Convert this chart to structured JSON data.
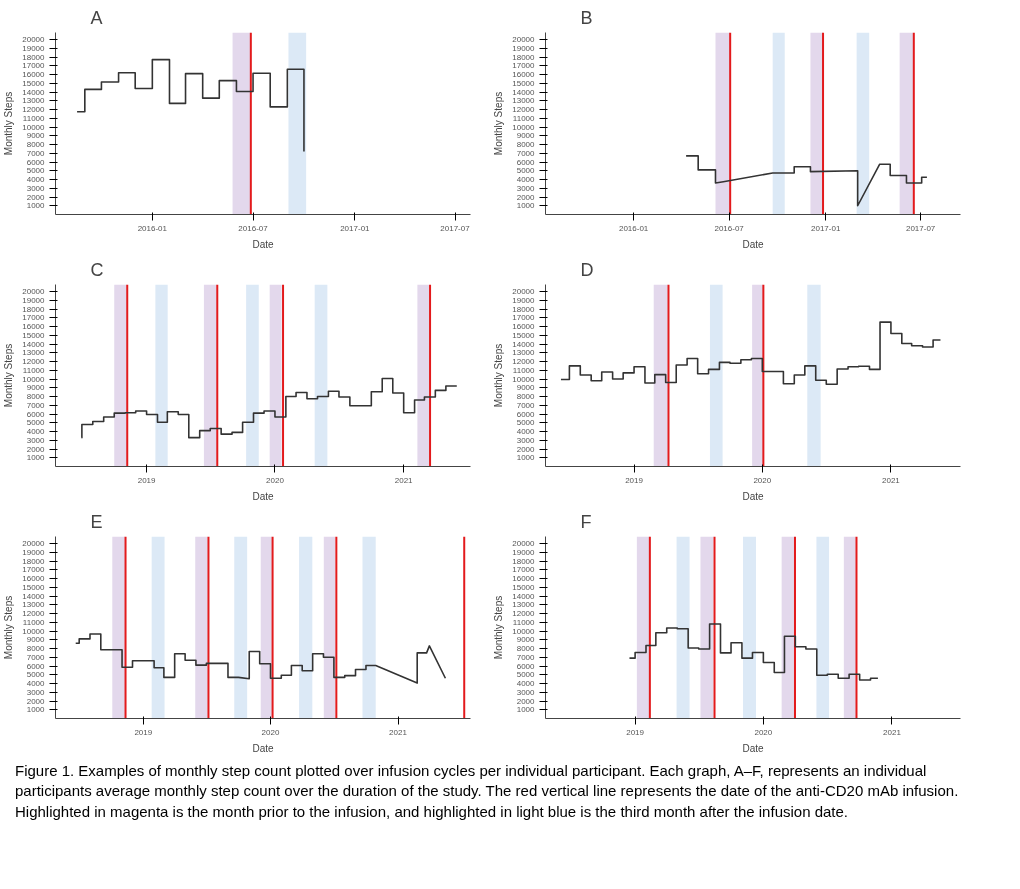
{
  "chart_data": [
    {
      "type": "step",
      "title": "A",
      "xlabel": "Date",
      "ylabel": "Monthly Steps",
      "xlim": [
        "2015-07-10",
        "2017-07-29"
      ],
      "ylim": [
        0,
        20800
      ],
      "xticks": [
        "2016-01",
        "2016-07",
        "2017-01",
        "2017-07"
      ],
      "yticks": [
        1000,
        2000,
        3000,
        4000,
        5000,
        6000,
        7000,
        8000,
        9000,
        10000,
        11000,
        12000,
        13000,
        14000,
        15000,
        16000,
        17000,
        18000,
        19000,
        20000
      ],
      "series": [
        {
          "color": "#333333",
          "x": [
            "2015-08-18",
            "2015-09-01",
            "2015-10-01",
            "2015-11-01",
            "2015-12-01",
            "2016-01-01",
            "2016-02-01",
            "2016-03-01",
            "2016-04-01",
            "2016-05-01",
            "2016-06-01",
            "2016-07-01",
            "2016-08-01",
            "2016-09-01",
            "2016-10-01"
          ],
          "values": [
            11750,
            14300,
            15150,
            16200,
            14400,
            17700,
            12700,
            16100,
            13300,
            15300,
            14050,
            16150,
            12300,
            16600,
            7200
          ]
        }
      ],
      "bands": [
        {
          "axis": "x",
          "from": "2016-05-25",
          "to": "2016-06-27",
          "color": "#e3d8ec"
        },
        {
          "axis": "x",
          "from": "2016-09-03",
          "to": "2016-10-05",
          "color": "#dce9f6"
        }
      ],
      "ref_lines": [
        {
          "axis": "x",
          "value": "2016-06-27",
          "color": "#e31a1c"
        }
      ]
    },
    {
      "type": "line",
      "title": "B",
      "xlabel": "Date",
      "ylabel": "Monthly Steps",
      "xlim": [
        "2015-07-17",
        "2017-09-15"
      ],
      "ylim": [
        0,
        20800
      ],
      "xticks": [
        "2016-01",
        "2016-07",
        "2017-01",
        "2017-07"
      ],
      "yticks": [
        1000,
        2000,
        3000,
        4000,
        5000,
        6000,
        7000,
        8000,
        9000,
        10000,
        11000,
        12000,
        13000,
        14000,
        15000,
        16000,
        17000,
        18000,
        19000,
        20000
      ],
      "series": [
        {
          "color": "#333333",
          "x": [
            "2016-04-10",
            "2016-05-03",
            "2016-05-03",
            "2016-06-05",
            "2016-06-05",
            "2016-06-20",
            "2016-09-22",
            "2016-11-02",
            "2016-11-02",
            "2016-12-03",
            "2016-12-03",
            "2017-03-03",
            "2017-03-03",
            "2017-04-14",
            "2017-05-04",
            "2017-05-04",
            "2017-06-04",
            "2017-06-04",
            "2017-07-03",
            "2017-07-03",
            "2017-07-13"
          ],
          "values": [
            6700,
            6700,
            5100,
            5100,
            3600,
            3750,
            4750,
            4750,
            5450,
            5450,
            4900,
            5000,
            1000,
            5750,
            5750,
            4450,
            4450,
            3600,
            3600,
            4250,
            4250
          ]
        }
      ],
      "bands": [
        {
          "axis": "x",
          "from": "2016-06-05",
          "to": "2016-07-03",
          "color": "#e3d8ec"
        },
        {
          "axis": "x",
          "from": "2016-09-22",
          "to": "2016-10-15",
          "color": "#dce9f6"
        },
        {
          "axis": "x",
          "from": "2016-12-03",
          "to": "2016-12-27",
          "color": "#e3d8ec"
        },
        {
          "axis": "x",
          "from": "2017-03-01",
          "to": "2017-03-25",
          "color": "#dce9f6"
        },
        {
          "axis": "x",
          "from": "2017-05-22",
          "to": "2017-06-17",
          "color": "#e3d8ec"
        }
      ],
      "ref_lines": [
        {
          "axis": "x",
          "value": "2016-07-03",
          "color": "#e31a1c"
        },
        {
          "axis": "x",
          "value": "2016-12-27",
          "color": "#e31a1c"
        },
        {
          "axis": "x",
          "value": "2017-06-18",
          "color": "#e31a1c"
        }
      ]
    },
    {
      "type": "step",
      "title": "C",
      "xlabel": "Date",
      "ylabel": "Monthly Steps",
      "xlim": [
        "2018-04-17",
        "2021-07-10"
      ],
      "ylim": [
        0,
        20800
      ],
      "xticks": [
        "2019",
        "2020",
        "2021"
      ],
      "yticks": [
        1000,
        2000,
        3000,
        4000,
        5000,
        6000,
        7000,
        8000,
        9000,
        10000,
        11000,
        12000,
        13000,
        14000,
        15000,
        16000,
        17000,
        18000,
        19000,
        20000
      ],
      "series": [
        {
          "color": "#333333",
          "x": [
            "2018-06-30",
            "2018-07-01",
            "2018-08-01",
            "2018-09-01",
            "2018-10-01",
            "2018-11-01",
            "2018-12-01",
            "2019-01-01",
            "2019-02-01",
            "2019-03-01",
            "2019-04-01",
            "2019-05-01",
            "2019-06-01",
            "2019-07-01",
            "2019-08-01",
            "2019-09-01",
            "2019-10-01",
            "2019-11-01",
            "2019-12-01",
            "2020-01-01",
            "2020-02-01",
            "2020-03-01",
            "2020-04-01",
            "2020-05-01",
            "2020-06-01",
            "2020-07-01",
            "2020-08-01",
            "2020-09-01",
            "2020-10-01",
            "2020-11-01",
            "2020-12-01",
            "2021-01-01",
            "2021-02-01",
            "2021-03-01",
            "2021-04-01",
            "2021-05-01",
            "2021-06-01"
          ],
          "values": [
            3300,
            4800,
            5150,
            5650,
            6100,
            6150,
            6350,
            5950,
            5050,
            6250,
            5950,
            3300,
            4100,
            4350,
            3700,
            3900,
            5050,
            6100,
            6350,
            5650,
            8000,
            8450,
            7750,
            8000,
            8600,
            7950,
            6950,
            6950,
            8550,
            10050,
            8400,
            6150,
            7600,
            7950,
            8700,
            9200,
            9200
          ]
        }
      ],
      "bands": [
        {
          "axis": "x",
          "from": "2018-10-01",
          "to": "2018-11-07",
          "color": "#e3d8ec"
        },
        {
          "axis": "x",
          "from": "2019-01-26",
          "to": "2019-03-02",
          "color": "#dce9f6"
        },
        {
          "axis": "x",
          "from": "2019-06-13",
          "to": "2019-07-20",
          "color": "#e3d8ec"
        },
        {
          "axis": "x",
          "from": "2019-10-11",
          "to": "2019-11-16",
          "color": "#dce9f6"
        },
        {
          "axis": "x",
          "from": "2019-12-17",
          "to": "2020-01-20",
          "color": "#e3d8ec"
        },
        {
          "axis": "x",
          "from": "2020-04-23",
          "to": "2020-05-29",
          "color": "#dce9f6"
        },
        {
          "axis": "x",
          "from": "2021-02-09",
          "to": "2021-03-14",
          "color": "#e3d8ec"
        }
      ],
      "ref_lines": [
        {
          "axis": "x",
          "value": "2018-11-07",
          "color": "#e31a1c"
        },
        {
          "axis": "x",
          "value": "2019-07-21",
          "color": "#e31a1c"
        },
        {
          "axis": "x",
          "value": "2020-01-24",
          "color": "#e31a1c"
        },
        {
          "axis": "x",
          "value": "2021-03-17",
          "color": "#e31a1c"
        }
      ]
    },
    {
      "type": "step",
      "title": "D",
      "xlabel": "Date",
      "ylabel": "Monthly Steps",
      "xlim": [
        "2018-04-24",
        "2021-07-18"
      ],
      "ylim": [
        0,
        20800
      ],
      "xticks": [
        "2019",
        "2020",
        "2021"
      ],
      "yticks": [
        1000,
        2000,
        3000,
        4000,
        5000,
        6000,
        7000,
        8000,
        9000,
        10000,
        11000,
        12000,
        13000,
        14000,
        15000,
        16000,
        17000,
        18000,
        19000,
        20000
      ],
      "series": [
        {
          "color": "#333333",
          "x": [
            "2018-06-07",
            "2018-07-01",
            "2018-08-01",
            "2018-09-01",
            "2018-10-01",
            "2018-11-01",
            "2018-12-01",
            "2019-01-01",
            "2019-02-01",
            "2019-03-01",
            "2019-04-01",
            "2019-05-01",
            "2019-06-01",
            "2019-07-01",
            "2019-08-01",
            "2019-09-01",
            "2019-10-01",
            "2019-11-01",
            "2019-12-01",
            "2020-01-01",
            "2020-02-01",
            "2020-03-01",
            "2020-04-01",
            "2020-05-01",
            "2020-06-01",
            "2020-07-01",
            "2020-08-01",
            "2020-09-01",
            "2020-10-01",
            "2020-11-01",
            "2020-12-01",
            "2021-01-01",
            "2021-02-01",
            "2021-03-01",
            "2021-04-01",
            "2021-05-01",
            "2021-05-22"
          ],
          "values": [
            9950,
            11500,
            10450,
            9800,
            10800,
            10000,
            10700,
            11400,
            9550,
            10500,
            9600,
            11600,
            12350,
            10600,
            11100,
            11900,
            11800,
            12200,
            12350,
            10850,
            10850,
            9450,
            10450,
            11500,
            9850,
            9400,
            11150,
            11400,
            11450,
            11100,
            16500,
            15200,
            14050,
            13800,
            13650,
            14450,
            14450
          ]
        }
      ],
      "bands": [
        {
          "axis": "x",
          "from": "2019-02-26",
          "to": "2019-04-07",
          "color": "#e3d8ec"
        },
        {
          "axis": "x",
          "from": "2019-08-05",
          "to": "2019-09-10",
          "color": "#dce9f6"
        },
        {
          "axis": "x",
          "from": "2019-12-03",
          "to": "2020-01-03",
          "color": "#e3d8ec"
        },
        {
          "axis": "x",
          "from": "2020-05-08",
          "to": "2020-06-15",
          "color": "#dce9f6"
        }
      ],
      "ref_lines": [
        {
          "axis": "x",
          "value": "2019-04-09",
          "color": "#e31a1c"
        },
        {
          "axis": "x",
          "value": "2020-01-04",
          "color": "#e31a1c"
        }
      ]
    },
    {
      "type": "line",
      "title": "E",
      "xlabel": "Date",
      "ylabel": "Monthly Steps",
      "xlim": [
        "2018-04-24",
        "2021-07-28"
      ],
      "ylim": [
        0,
        20800
      ],
      "xticks": [
        "2019",
        "2020",
        "2021"
      ],
      "yticks": [
        1000,
        2000,
        3000,
        4000,
        5000,
        6000,
        7000,
        8000,
        9000,
        10000,
        11000,
        12000,
        13000,
        14000,
        15000,
        16000,
        17000,
        18000,
        19000,
        20000
      ],
      "series": [
        {
          "color": "#333333",
          "x": [
            "2018-06-21",
            "2018-07-01",
            "2018-07-01",
            "2018-08-01",
            "2018-08-01",
            "2018-09-01",
            "2018-09-01",
            "2018-11-01",
            "2018-11-01",
            "2018-12-01",
            "2018-12-01",
            "2019-02-01",
            "2019-02-01",
            "2019-03-01",
            "2019-03-01",
            "2019-04-01",
            "2019-04-01",
            "2019-05-01",
            "2019-05-01",
            "2019-06-01",
            "2019-06-01",
            "2019-07-01",
            "2019-07-01",
            "2019-09-01",
            "2019-09-01",
            "2019-10-01",
            "2019-11-01",
            "2019-11-01",
            "2019-12-01",
            "2019-12-01",
            "2020-01-01",
            "2020-01-01",
            "2020-02-01",
            "2020-02-01",
            "2020-03-01",
            "2020-03-01",
            "2020-04-01",
            "2020-04-01",
            "2020-05-01",
            "2020-05-01",
            "2020-06-01",
            "2020-06-01",
            "2020-07-01",
            "2020-07-01",
            "2020-08-01",
            "2020-08-01",
            "2020-09-01",
            "2020-09-01",
            "2020-10-01",
            "2020-10-01",
            "2020-10-29",
            "2021-02-25",
            "2021-02-25",
            "2021-03-24",
            "2021-04-01",
            "2021-05-17"
          ],
          "values": [
            8600,
            8600,
            9100,
            9100,
            9650,
            9650,
            7850,
            7850,
            5850,
            5850,
            6600,
            6600,
            5800,
            5800,
            4700,
            4700,
            7400,
            7400,
            6650,
            6650,
            6100,
            6100,
            6300,
            6300,
            4700,
            4700,
            4550,
            7650,
            7650,
            6250,
            6250,
            4600,
            4600,
            4950,
            4950,
            6050,
            6050,
            5450,
            5450,
            7400,
            7400,
            7000,
            7000,
            4700,
            4700,
            4900,
            4900,
            5600,
            5600,
            6050,
            6050,
            4050,
            7500,
            7500,
            8300,
            4600
          ]
        }
      ],
      "bands": [
        {
          "axis": "x",
          "from": "2018-10-04",
          "to": "2018-11-10",
          "color": "#e3d8ec"
        },
        {
          "axis": "x",
          "from": "2019-01-25",
          "to": "2019-03-03",
          "color": "#dce9f6"
        },
        {
          "axis": "x",
          "from": "2019-05-30",
          "to": "2019-07-05",
          "color": "#e3d8ec"
        },
        {
          "axis": "x",
          "from": "2019-09-19",
          "to": "2019-10-26",
          "color": "#dce9f6"
        },
        {
          "axis": "x",
          "from": "2019-12-04",
          "to": "2020-01-05",
          "color": "#e3d8ec"
        },
        {
          "axis": "x",
          "from": "2020-03-23",
          "to": "2020-04-30",
          "color": "#dce9f6"
        },
        {
          "axis": "x",
          "from": "2020-06-02",
          "to": "2020-07-05",
          "color": "#e3d8ec"
        },
        {
          "axis": "x",
          "from": "2020-09-21",
          "to": "2020-10-29",
          "color": "#dce9f6"
        }
      ],
      "ref_lines": [
        {
          "axis": "x",
          "value": "2018-11-11",
          "color": "#e31a1c"
        },
        {
          "axis": "x",
          "value": "2019-07-07",
          "color": "#e31a1c"
        },
        {
          "axis": "x",
          "value": "2020-01-07",
          "color": "#e31a1c"
        },
        {
          "axis": "x",
          "value": "2020-07-08",
          "color": "#e31a1c"
        },
        {
          "axis": "x",
          "value": "2021-07-10",
          "color": "#e31a1c"
        }
      ]
    },
    {
      "type": "step",
      "title": "F",
      "xlabel": "Date",
      "ylabel": "Monthly Steps",
      "xlim": [
        "2018-04-21",
        "2021-07-15"
      ],
      "ylim": [
        0,
        20800
      ],
      "xticks": [
        "2019",
        "2020",
        "2021"
      ],
      "yticks": [
        1000,
        2000,
        3000,
        4000,
        5000,
        6000,
        7000,
        8000,
        9000,
        10000,
        11000,
        12000,
        13000,
        14000,
        15000,
        16000,
        17000,
        18000,
        19000,
        20000
      ],
      "series": [
        {
          "color": "#333333",
          "x": [
            "2018-12-16",
            "2019-01-01",
            "2019-02-01",
            "2019-03-01",
            "2019-04-01",
            "2019-05-01",
            "2019-06-01",
            "2019-07-01",
            "2019-08-01",
            "2019-09-01",
            "2019-10-01",
            "2019-11-01",
            "2019-12-01",
            "2020-01-01",
            "2020-02-01",
            "2020-03-01",
            "2020-04-01",
            "2020-05-01",
            "2020-06-01",
            "2020-07-01",
            "2020-08-01",
            "2020-09-01",
            "2020-10-01",
            "2020-11-01",
            "2020-11-22"
          ],
          "values": [
            6900,
            7550,
            8350,
            9800,
            10350,
            10250,
            8050,
            7950,
            10800,
            7500,
            8650,
            6900,
            7550,
            6400,
            5250,
            9400,
            8200,
            7950,
            4950,
            5050,
            4600,
            5050,
            4400,
            4600,
            4600
          ]
        }
      ],
      "bands": [
        {
          "axis": "x",
          "from": "2019-01-06",
          "to": "2019-02-11",
          "color": "#e3d8ec"
        },
        {
          "axis": "x",
          "from": "2019-04-29",
          "to": "2019-06-05",
          "color": "#dce9f6"
        },
        {
          "axis": "x",
          "from": "2019-07-06",
          "to": "2019-08-12",
          "color": "#e3d8ec"
        },
        {
          "axis": "x",
          "from": "2019-11-04",
          "to": "2019-12-11",
          "color": "#dce9f6"
        },
        {
          "axis": "x",
          "from": "2020-02-22",
          "to": "2020-03-29",
          "color": "#e3d8ec"
        },
        {
          "axis": "x",
          "from": "2020-05-31",
          "to": "2020-07-06",
          "color": "#dce9f6"
        },
        {
          "axis": "x",
          "from": "2020-08-17",
          "to": "2020-09-20",
          "color": "#e3d8ec"
        }
      ],
      "ref_lines": [
        {
          "axis": "x",
          "value": "2019-02-12",
          "color": "#e31a1c"
        },
        {
          "axis": "x",
          "value": "2019-08-15",
          "color": "#e31a1c"
        },
        {
          "axis": "x",
          "value": "2020-03-31",
          "color": "#e31a1c"
        },
        {
          "axis": "x",
          "value": "2020-09-22",
          "color": "#e31a1c"
        }
      ],
      "annotations": [
        "Figure 1. Examples of monthly step count plotted over infusion cycles per individual participant. Each graph, A–F, represents an individual participants average monthly step count over the duration of the study. The red vertical line represents the date of the anti-CD20 mAb infusion. Highlighted in magenta is the month prior to the infusion, and highlighted in light blue is the third month after the infusion date."
      ]
    }
  ]
}
